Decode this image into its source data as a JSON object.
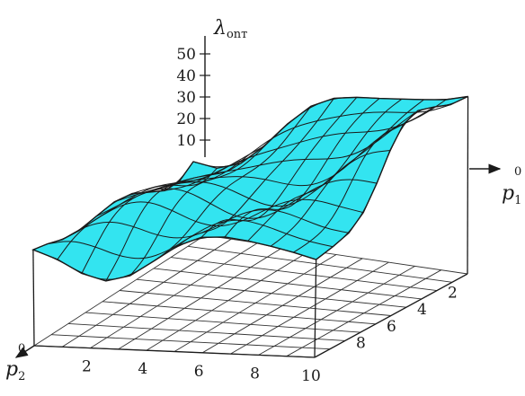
{
  "chart_data": {
    "type": "surface3d",
    "z_axis": {
      "label": "λ",
      "label_sub": "onт",
      "ticks": [
        "10",
        "20",
        "30",
        "40",
        "50"
      ]
    },
    "x_axis": {
      "label": "p",
      "label_sub": "1",
      "label_sup": "0",
      "ticks": [
        "2",
        "4",
        "6",
        "8"
      ]
    },
    "y_axis": {
      "label": "p",
      "label_sub": "2",
      "label_sup": "0",
      "ticks": [
        "2",
        "4",
        "6",
        "8",
        "10"
      ]
    },
    "grid": true,
    "surface_color": "#33e4f0",
    "line_color": "#1a1a1a"
  }
}
